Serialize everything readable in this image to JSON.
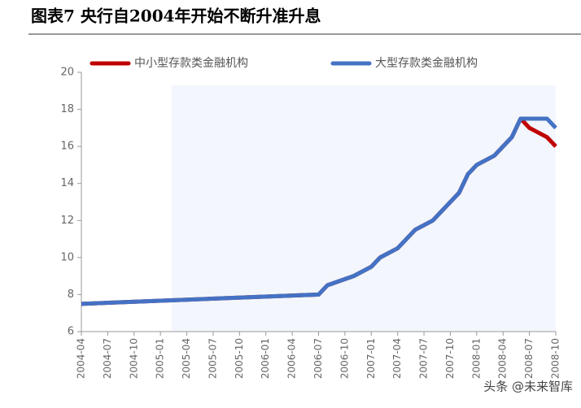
{
  "chart_data": {
    "type": "line",
    "title": "图表7 央行自2004年开始不断升准升息",
    "x": [
      "2004-04",
      "2006-07",
      "2006-08",
      "2006-11",
      "2007-01",
      "2007-02",
      "2007-04",
      "2007-05",
      "2007-06",
      "2007-08",
      "2007-09",
      "2007-10",
      "2007-11",
      "2007-12",
      "2008-01",
      "2008-03",
      "2008-04",
      "2008-05",
      "2008-06",
      "2008-07",
      "2008-08",
      "2008-09",
      "2008-10"
    ],
    "series": [
      {
        "name": "中小型存款类金融机构",
        "color": "#c00000",
        "values": [
          7.5,
          8,
          8.5,
          9,
          9.5,
          10,
          10.5,
          11,
          11.5,
          12,
          12.5,
          13,
          13.5,
          14.5,
          15,
          15.5,
          16,
          16.5,
          17.5,
          17,
          16.75,
          16.5,
          16
        ]
      },
      {
        "name": "大型存款类金融机构",
        "color": "#4472c4",
        "values": [
          7.5,
          8,
          8.5,
          9,
          9.5,
          10,
          10.5,
          11,
          11.5,
          12,
          12.5,
          13,
          13.5,
          14.5,
          15,
          15.5,
          16,
          16.5,
          17.5,
          17.5,
          17.5,
          17.5,
          17
        ]
      }
    ],
    "xlim": [
      "2004-04",
      "2008-10"
    ],
    "xticks": [
      "2004-04",
      "2004-07",
      "2004-10",
      "2005-01",
      "2005-04",
      "2005-07",
      "2005-10",
      "2006-01",
      "2006-04",
      "2006-07",
      "2006-10",
      "2007-01",
      "2007-04",
      "2007-07",
      "2007-10",
      "2008-01",
      "2008-04",
      "2008-07",
      "2008-10"
    ],
    "ylim": [
      6,
      20
    ],
    "yticks": [
      6,
      8,
      10,
      12,
      14,
      16,
      18,
      20
    ],
    "watermark": "头条 @未来智库"
  }
}
